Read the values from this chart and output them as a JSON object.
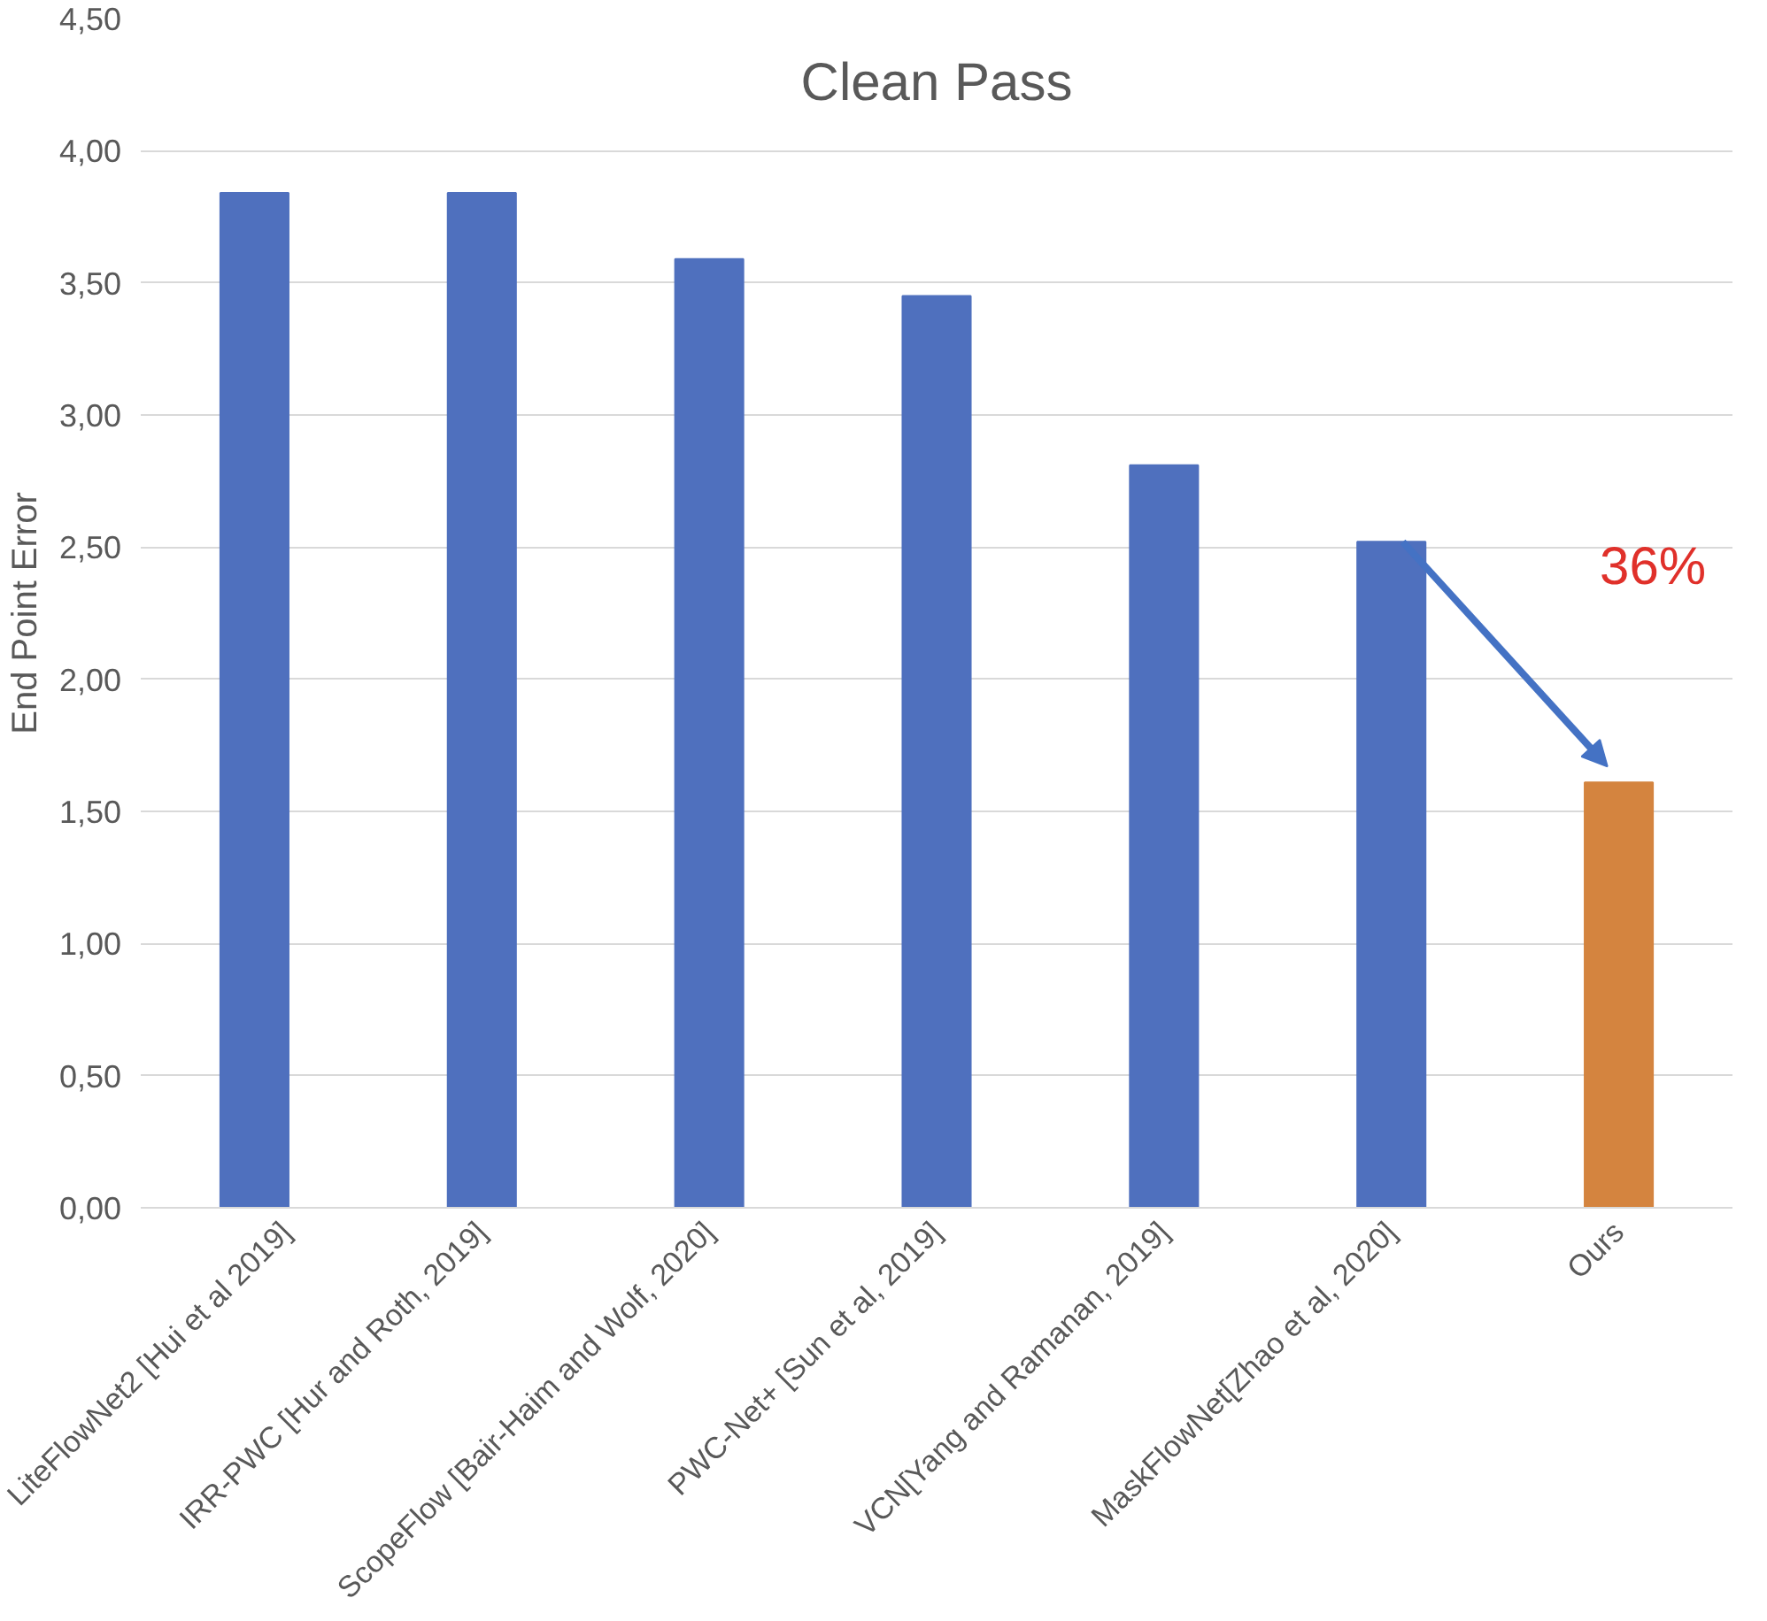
{
  "chart_data": {
    "type": "bar",
    "title": "Clean Pass",
    "ylabel": "End Point Error",
    "categories": [
      "LiteFlowNet2 [Hui et al 2019]",
      "IRR-PWC [Hur and Roth, 2019]",
      "ScopeFlow [Bair-Haim and Wolf, 2020]",
      "PWC-Net+ [Sun et al, 2019]",
      "VCN[Yang and Ramanan, 2019]",
      "MaskFlowNet[Zhao et al, 2020]",
      "Ours"
    ],
    "values": [
      3.84,
      3.84,
      3.59,
      3.45,
      2.81,
      2.52,
      1.61
    ],
    "colors": [
      "#4f70be",
      "#4f70be",
      "#4f70be",
      "#4f70be",
      "#4f70be",
      "#4f70be",
      "#d4843f"
    ],
    "ylim": [
      0,
      4.5
    ],
    "yticks": [
      {
        "value": 0,
        "label": "0,00"
      },
      {
        "value": 0.5,
        "label": "0,50"
      },
      {
        "value": 1,
        "label": "1,00"
      },
      {
        "value": 1.5,
        "label": "1,50"
      },
      {
        "value": 2,
        "label": "2,00"
      },
      {
        "value": 2.5,
        "label": "2,50"
      },
      {
        "value": 3,
        "label": "3,00"
      },
      {
        "value": 3.5,
        "label": "3,50"
      },
      {
        "value": 4,
        "label": "4,00"
      },
      {
        "value": 4.5,
        "label": "4,50"
      }
    ],
    "grid": "y",
    "annotations": [
      "36%"
    ]
  }
}
